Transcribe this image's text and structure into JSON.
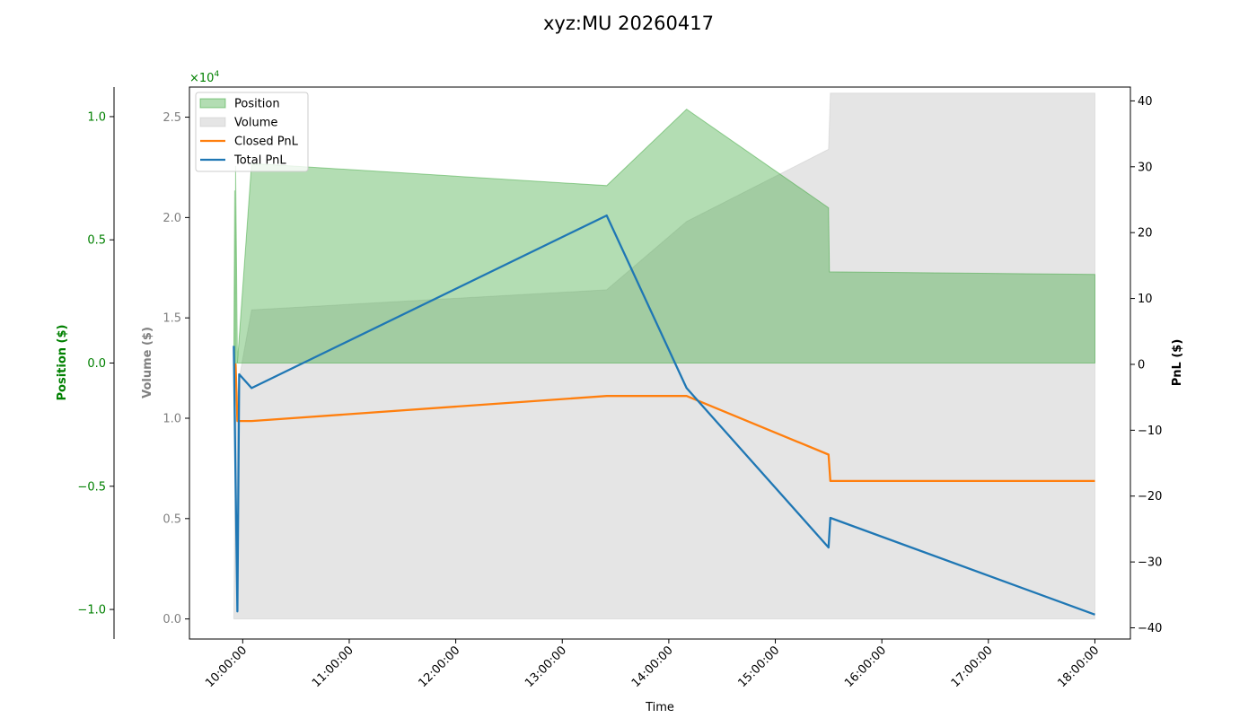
{
  "chart_data": {
    "type": "line",
    "title": "xyz:MU 20260417",
    "xlabel": "Time",
    "x_ticks": [
      "10:00:00",
      "11:00:00",
      "12:00:00",
      "13:00:00",
      "14:00:00",
      "15:00:00",
      "16:00:00",
      "17:00:00",
      "18:00:00"
    ],
    "x_range": [
      "09:30:00",
      "18:20:00"
    ],
    "axes": {
      "position": {
        "label": "Position ($)",
        "color": "#008000",
        "range": [
          -1.12,
          1.12
        ],
        "ticks": [
          -1.0,
          -0.5,
          0.0,
          0.5,
          1.0
        ],
        "tick_labels": [
          "−1.0",
          "−0.5",
          "0.0",
          "0.5",
          "1.0"
        ],
        "multiplier": "×10",
        "multiplier_exp": "4"
      },
      "volume": {
        "label": "Volume ($)",
        "color": "#808080",
        "range": [
          -1000,
          26500
        ],
        "ticks": [
          0,
          5000,
          10000,
          15000,
          20000,
          25000
        ],
        "tick_labels": [
          "0.0",
          "0.5",
          "1.0",
          "1.5",
          "2.0",
          "2.5"
        ]
      },
      "pnl": {
        "label": "PnL ($)",
        "color": "#000000",
        "range": [
          -41.7,
          42.1
        ],
        "ticks": [
          -40,
          -30,
          -20,
          -10,
          0,
          10,
          20,
          30,
          40
        ],
        "tick_labels": [
          "−40",
          "−30",
          "−20",
          "−10",
          "0",
          "10",
          "20",
          "30",
          "40"
        ]
      }
    },
    "legend": {
      "placement": "upper-left",
      "entries": [
        "Position",
        "Volume",
        "Closed PnL",
        "Total PnL"
      ]
    },
    "series": [
      {
        "name": "Position",
        "kind": "area",
        "axis": "position",
        "color": "#2ca02c",
        "points": [
          [
            "09:55:00",
            0.0
          ],
          [
            "09:55:30",
            0.7
          ],
          [
            "09:55:50",
            0.0
          ],
          [
            "09:56:00",
            0.8
          ],
          [
            "09:56:30",
            0.42
          ],
          [
            "09:57:00",
            0.0
          ],
          [
            "10:05:00",
            0.81
          ],
          [
            "13:25:00",
            0.72
          ],
          [
            "14:10:00",
            1.03
          ],
          [
            "15:30:00",
            0.63
          ],
          [
            "15:30:30",
            0.37
          ],
          [
            "18:00:00",
            0.36
          ]
        ]
      },
      {
        "name": "Volume",
        "kind": "area",
        "axis": "volume",
        "color": "#a9a9a9",
        "points": [
          [
            "09:55:00",
            0
          ],
          [
            "09:56:00",
            10000
          ],
          [
            "09:58:00",
            12000
          ],
          [
            "10:05:00",
            15400
          ],
          [
            "13:25:00",
            16400
          ],
          [
            "14:10:00",
            19800
          ],
          [
            "15:30:00",
            23400
          ],
          [
            "15:31:00",
            26200
          ],
          [
            "18:00:00",
            26200
          ]
        ]
      },
      {
        "name": "Closed PnL",
        "kind": "line",
        "axis": "pnl",
        "color": "#ff7f0e",
        "points": [
          [
            "09:55:00",
            0
          ],
          [
            "09:56:00",
            0
          ],
          [
            "09:57:00",
            -8.6
          ],
          [
            "10:05:00",
            -8.6
          ],
          [
            "13:25:00",
            -4.8
          ],
          [
            "14:10:00",
            -4.8
          ],
          [
            "15:30:00",
            -13.7
          ],
          [
            "15:31:00",
            -17.7
          ],
          [
            "18:00:00",
            -17.7
          ]
        ]
      },
      {
        "name": "Total PnL",
        "kind": "line",
        "axis": "pnl",
        "color": "#1f77b4",
        "points": [
          [
            "09:55:00",
            2.8
          ],
          [
            "09:56:00",
            -18
          ],
          [
            "09:57:00",
            -37.5
          ],
          [
            "09:58:00",
            -1.5
          ],
          [
            "10:05:00",
            -3.6
          ],
          [
            "13:25:00",
            22.6
          ],
          [
            "14:10:00",
            -3.6
          ],
          [
            "15:30:00",
            -27.8
          ],
          [
            "15:31:00",
            -23.3
          ],
          [
            "18:00:00",
            -38
          ]
        ]
      }
    ]
  }
}
